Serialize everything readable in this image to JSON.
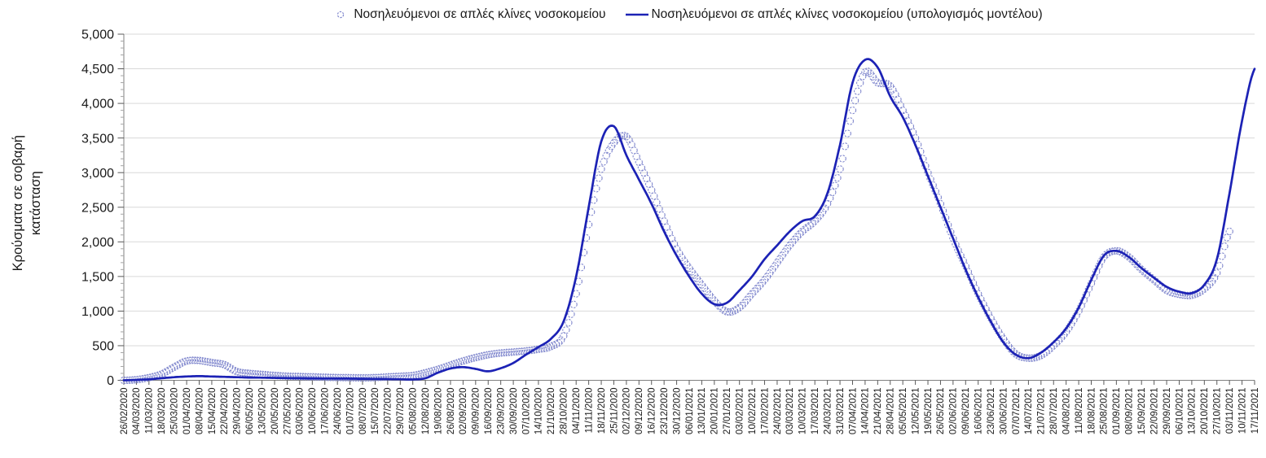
{
  "colors": {
    "model_line": "#1C22B5",
    "observed_marker": "#8289CE",
    "gridline": "#D9D9D9",
    "axis_line": "#808080",
    "major_tick": "#595959",
    "minor_tick": "#A6A6A6",
    "text": "#1A1A1A"
  },
  "chart_data": {
    "type": "scatter+line",
    "title": "",
    "xlabel": "",
    "ylabel_lines": [
      "Κρούσματα σε σοβαρή",
      "κατάσταση"
    ],
    "ylim": [
      0,
      5000
    ],
    "ytick_step": 500,
    "ytick_labels": [
      "0",
      "500",
      "1,000",
      "1,500",
      "2,000",
      "2,500",
      "3,000",
      "3,500",
      "4,000",
      "4,500",
      "5,000"
    ],
    "grid": "horizontal",
    "legend_position": "top-center",
    "categories": [
      "26/02/2020",
      "04/03/2020",
      "11/03/2020",
      "18/03/2020",
      "25/03/2020",
      "01/04/2020",
      "08/04/2020",
      "15/04/2020",
      "22/04/2020",
      "29/04/2020",
      "06/05/2020",
      "13/05/2020",
      "20/05/2020",
      "27/05/2020",
      "03/06/2020",
      "10/06/2020",
      "17/06/2020",
      "24/06/2020",
      "01/07/2020",
      "08/07/2020",
      "15/07/2020",
      "22/07/2020",
      "29/07/2020",
      "05/08/2020",
      "12/08/2020",
      "19/08/2020",
      "26/08/2020",
      "02/09/2020",
      "09/09/2020",
      "16/09/2020",
      "23/09/2020",
      "30/09/2020",
      "07/10/2020",
      "14/10/2020",
      "21/10/2020",
      "28/10/2020",
      "04/11/2020",
      "11/11/2020",
      "18/11/2020",
      "25/11/2020",
      "02/12/2020",
      "09/12/2020",
      "16/12/2020",
      "23/12/2020",
      "30/12/2020",
      "06/01/2021",
      "13/01/2021",
      "20/01/2021",
      "27/01/2021",
      "03/02/2021",
      "10/02/2021",
      "17/02/2021",
      "24/02/2021",
      "03/03/2021",
      "10/03/2021",
      "17/03/2021",
      "24/03/2021",
      "31/03/2021",
      "07/04/2021",
      "14/04/2021",
      "21/04/2021",
      "28/04/2021",
      "05/05/2021",
      "12/05/2021",
      "19/05/2021",
      "26/05/2021",
      "02/06/2021",
      "09/06/2021",
      "16/06/2021",
      "23/06/2021",
      "30/06/2021",
      "07/07/2021",
      "14/07/2021",
      "21/07/2021",
      "28/07/2021",
      "04/08/2021",
      "11/08/2021",
      "18/08/2021",
      "25/08/2021",
      "01/09/2021",
      "08/09/2021",
      "15/09/2021",
      "22/09/2021",
      "29/09/2021",
      "06/10/2021",
      "13/10/2021",
      "20/10/2021",
      "27/10/2021",
      "03/11/2021",
      "10/11/2021",
      "17/11/2021"
    ],
    "series": [
      {
        "name": "Νοσηλευόμενοι σε απλές κλίνες νοσοκομείου",
        "type": "scatter",
        "marker": "open-circle",
        "color": "#8289CE",
        "values": [
          0,
          10,
          40,
          90,
          190,
          280,
          285,
          255,
          225,
          125,
          100,
          85,
          70,
          60,
          55,
          50,
          45,
          40,
          38,
          36,
          40,
          50,
          60,
          70,
          110,
          160,
          220,
          280,
          330,
          370,
          395,
          410,
          425,
          450,
          490,
          640,
          1250,
          2250,
          3050,
          3430,
          3520,
          3150,
          2750,
          2300,
          1900,
          1620,
          1380,
          1150,
          990,
          1050,
          1250,
          1450,
          1700,
          1950,
          2150,
          2300,
          2550,
          3050,
          3900,
          4450,
          4300,
          4250,
          3900,
          3500,
          3000,
          2550,
          2050,
          1650,
          1250,
          900,
          600,
          380,
          320,
          360,
          500,
          700,
          1000,
          1400,
          1780,
          1870,
          1780,
          1600,
          1450,
          1300,
          1240,
          1230,
          1320,
          1550,
          2150,
          null,
          null
        ]
      },
      {
        "name": "Νοσηλευόμενοι σε απλές κλίνες νοσοκομείου (υπολογισμός μοντέλου)",
        "type": "line",
        "color": "#1C22B5",
        "values": [
          0,
          5,
          15,
          30,
          45,
          55,
          60,
          55,
          50,
          45,
          40,
          38,
          35,
          32,
          30,
          28,
          26,
          25,
          24,
          22,
          20,
          18,
          15,
          12,
          30,
          110,
          170,
          190,
          165,
          130,
          175,
          250,
          370,
          480,
          600,
          850,
          1500,
          2500,
          3450,
          3670,
          3250,
          2900,
          2550,
          2150,
          1800,
          1500,
          1250,
          1100,
          1120,
          1300,
          1500,
          1750,
          1950,
          2150,
          2300,
          2370,
          2700,
          3400,
          4300,
          4630,
          4520,
          4100,
          3800,
          3400,
          2950,
          2500,
          2050,
          1600,
          1200,
          850,
          550,
          370,
          320,
          400,
          550,
          750,
          1050,
          1450,
          1800,
          1870,
          1780,
          1620,
          1480,
          1350,
          1280,
          1260,
          1380,
          1750,
          2700,
          3750,
          4500
        ]
      }
    ]
  }
}
